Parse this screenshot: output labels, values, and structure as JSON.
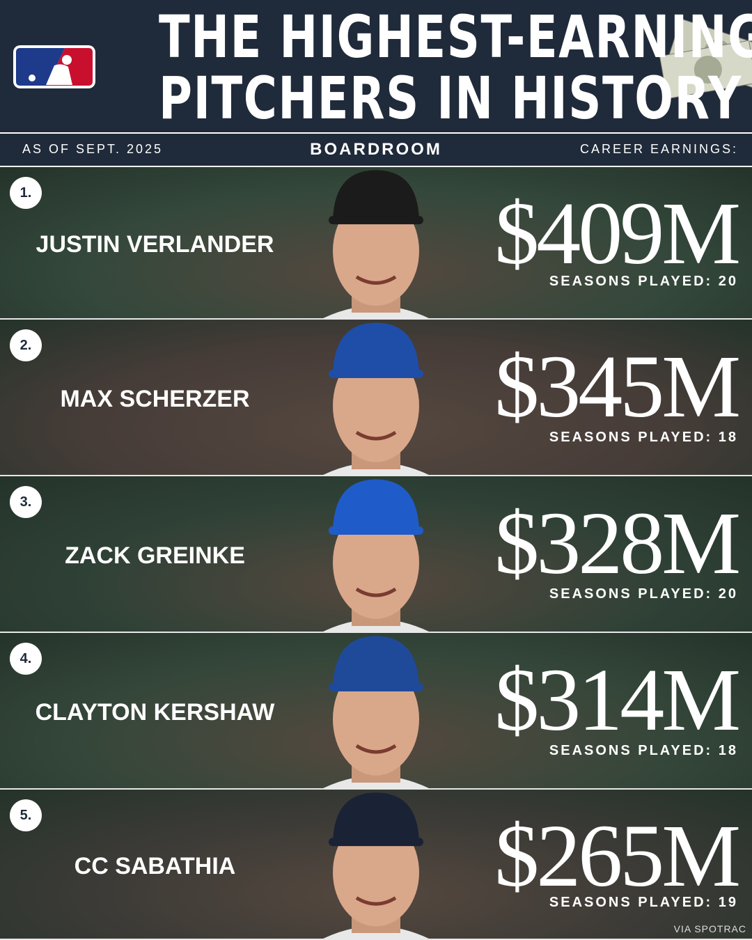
{
  "header": {
    "title_lines": [
      "THE HIGHEST-EARNING",
      "PITCHERS IN HISTORY"
    ]
  },
  "subheader": {
    "left": "AS OF SEPT. 2025",
    "center": "BOARDROOM",
    "right": "CAREER EARNINGS:"
  },
  "rows": [
    {
      "rank": "1.",
      "name": "JUSTIN VERLANDER",
      "earnings": "$409M",
      "seasons": "SEASONS PLAYED: 20"
    },
    {
      "rank": "2.",
      "name": "MAX SCHERZER",
      "earnings": "$345M",
      "seasons": "SEASONS PLAYED: 18"
    },
    {
      "rank": "3.",
      "name": "ZACK GREINKE",
      "earnings": "$328M",
      "seasons": "SEASONS PLAYED: 20"
    },
    {
      "rank": "4.",
      "name": "CLAYTON KERSHAW",
      "earnings": "$314M",
      "seasons": "SEASONS PLAYED: 18"
    },
    {
      "rank": "5.",
      "name": "CC SABATHIA",
      "earnings": "$265M",
      "seasons": "SEASONS PLAYED: 19"
    }
  ],
  "footer": {
    "source": "VIA SPOTRAC"
  }
}
